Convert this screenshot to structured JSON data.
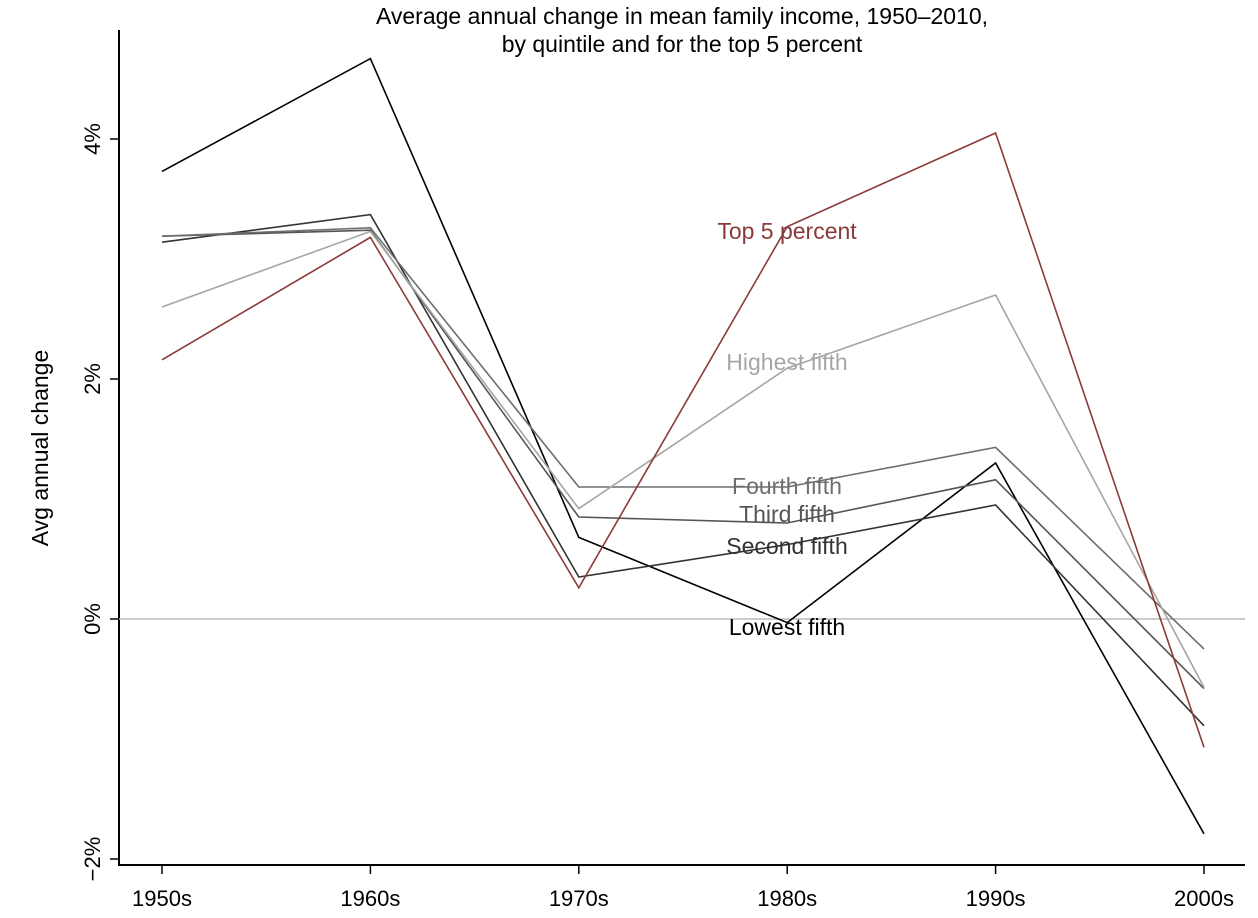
{
  "chart_data": {
    "type": "line",
    "title": "Average annual change in mean family income, 1950–2010,",
    "subtitle": "by quintile and for the top 5 percent",
    "xlabel": "",
    "ylabel": "Avg annual change",
    "categories": [
      "1950s",
      "1960s",
      "1970s",
      "1980s",
      "1990s",
      "2000s"
    ],
    "yticks": [
      -2,
      0,
      2,
      4
    ],
    "ytick_labels": [
      "−2%",
      "0%",
      "2%",
      "4%"
    ],
    "ylim": [
      -2.05,
      4.9
    ],
    "grid": false,
    "reference_line": 0,
    "legend": "inline labels at 1980s",
    "series": [
      {
        "name": "Lowest fifth",
        "color": "#000000",
        "values": [
          3.73,
          4.67,
          0.68,
          -0.03,
          1.3,
          -1.79
        ]
      },
      {
        "name": "Second fifth",
        "color": "#333333",
        "values": [
          3.14,
          3.37,
          0.35,
          0.62,
          0.95,
          -0.89
        ]
      },
      {
        "name": "Third fifth",
        "color": "#555555",
        "values": [
          3.19,
          3.24,
          0.85,
          0.8,
          1.16,
          -0.58
        ]
      },
      {
        "name": "Fourth fifth",
        "color": "#6e6e6e",
        "values": [
          3.19,
          3.26,
          1.1,
          1.1,
          1.43,
          -0.25
        ]
      },
      {
        "name": "Highest fifth",
        "color": "#a6a6a6",
        "values": [
          2.6,
          3.23,
          0.92,
          2.09,
          2.7,
          -0.57
        ]
      },
      {
        "name": "Top 5 percent",
        "color": "#8b3a3a",
        "values": [
          2.16,
          3.18,
          0.26,
          3.27,
          4.05,
          -1.07
        ]
      }
    ]
  }
}
